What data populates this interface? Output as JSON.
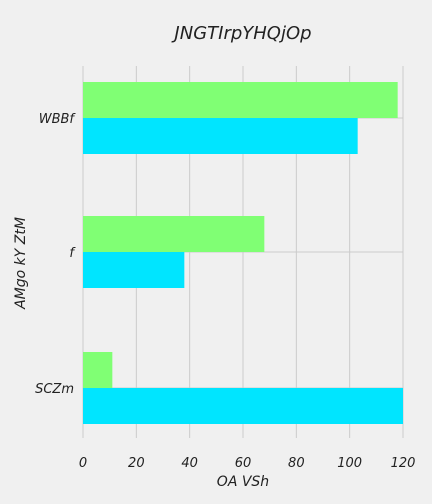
{
  "chart_data": {
    "type": "bar",
    "orientation": "horizontal",
    "title": "JNGTIrpYHQjOp",
    "xlabel": "OA VSh",
    "ylabel": "AMgo kY ZtM",
    "categories": [
      "WBBf",
      "f",
      "SCZm"
    ],
    "series": [
      {
        "color": "#00e5ff",
        "values": [
          103,
          38,
          120
        ]
      },
      {
        "color": "#80ff74",
        "values": [
          118,
          68,
          11
        ]
      }
    ],
    "xlim": [
      0,
      120
    ],
    "xticks": [
      "0",
      "20",
      "40",
      "60",
      "80",
      "100",
      "120"
    ],
    "grid": true
  }
}
